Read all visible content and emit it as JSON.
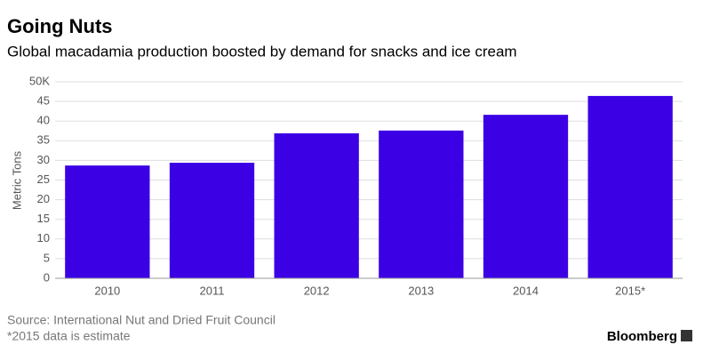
{
  "chart_data": {
    "type": "bar",
    "title": "Going Nuts",
    "subtitle": "Global macadamia production boosted by demand for snacks and ice cream",
    "y_label": "Metric Tons",
    "categories": [
      "2010",
      "2011",
      "2012",
      "2013",
      "2014",
      "2015*"
    ],
    "values": [
      28.7,
      29.4,
      36.9,
      37.6,
      41.6,
      46.4
    ],
    "color": "#3c00e5",
    "ylim": [
      0,
      50
    ],
    "yticks": [
      0,
      5,
      10,
      15,
      20,
      25,
      30,
      35,
      40,
      45,
      {
        "value": 50,
        "label": "50K"
      }
    ],
    "grid": true,
    "source": "Source: International Nut and Dried Fruit Council",
    "note": "*2015 data is estimate",
    "brand": "Bloomberg"
  }
}
